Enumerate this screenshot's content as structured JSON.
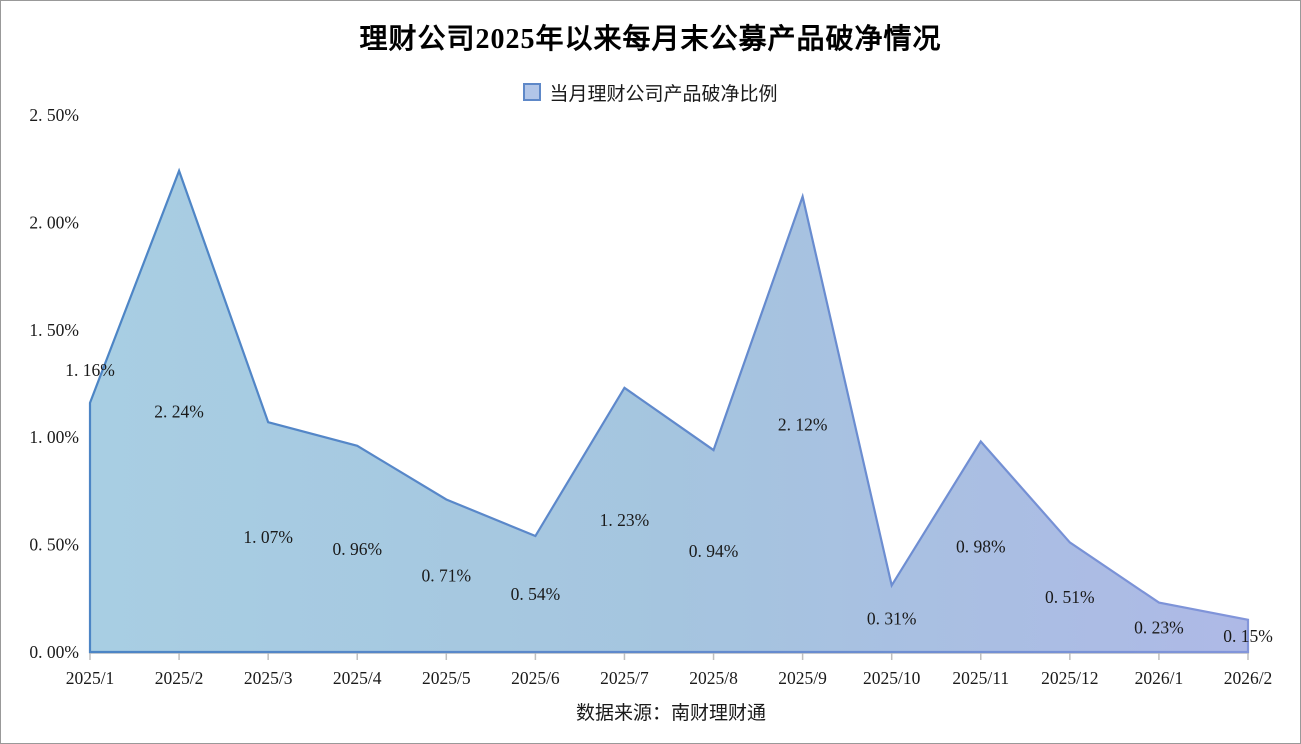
{
  "title": "理财公司2025年以来每月末公募产品破净情况",
  "legend": {
    "label": "当月理财公司产品破净比例"
  },
  "source": "数据来源：南财理财通",
  "colors": {
    "area_fill_gradient": [
      "#A8CEE3",
      "#A5C5DF",
      "#AEB9E6"
    ],
    "area_stroke_gradient": [
      "#4C85C5",
      "#6089CC",
      "#8295DA"
    ],
    "axis_line": "#BFBFBF",
    "text": "#1A1A1A",
    "legend_swatch_fill": "#B2C6E8",
    "legend_swatch_border": "#5E88C8",
    "chart_border": "#999999"
  },
  "chart_data": {
    "type": "area",
    "title": "理财公司2025年以来每月末公募产品破净情况",
    "series_name": "当月理财公司产品破净比例",
    "legend_position": "top",
    "grid": false,
    "categories": [
      "2025/1",
      "2025/2",
      "2025/3",
      "2025/4",
      "2025/5",
      "2025/6",
      "2025/7",
      "2025/8",
      "2025/9",
      "2025/10",
      "2025/11",
      "2025/12",
      "2026/1",
      "2026/2"
    ],
    "values": [
      1.16,
      2.24,
      1.07,
      0.96,
      0.71,
      0.54,
      1.23,
      0.94,
      2.12,
      0.31,
      0.98,
      0.51,
      0.23,
      0.15
    ],
    "point_labels": [
      "1. 16%",
      "2. 24%",
      "1. 07%",
      "0. 96%",
      "0. 71%",
      "0. 54%",
      "1. 23%",
      "0. 94%",
      "2. 12%",
      "0. 31%",
      "0. 98%",
      "0. 51%",
      "0. 23%",
      "0. 15%"
    ],
    "xlabel": "",
    "ylabel": "",
    "ylim": [
      0,
      2.5
    ],
    "y_ticks": {
      "labels": [
        "0. 00%",
        "0. 50%",
        "1. 00%",
        "1. 50%",
        "2. 00%",
        "2. 50%"
      ],
      "values": [
        0.0,
        0.5,
        1.0,
        1.5,
        2.0,
        2.5
      ]
    },
    "source": "数据来源：南财理财通"
  }
}
